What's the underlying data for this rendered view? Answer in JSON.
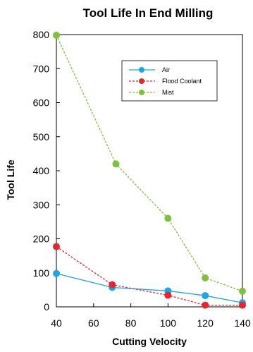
{
  "chart_data": {
    "type": "line",
    "title": "Tool Life In End Milling",
    "xlabel": "Cutting Velocity",
    "ylabel": "Tool Life",
    "xlim": [
      40,
      140
    ],
    "ylim": [
      0,
      800
    ],
    "xticks": [
      40,
      60,
      80,
      100,
      120,
      140
    ],
    "yticks": [
      0,
      100,
      200,
      300,
      400,
      500,
      600,
      700,
      800
    ],
    "grid": false,
    "legend": "top-right",
    "series": [
      {
        "name": "Air",
        "style": "solid",
        "color": "#1aa7e6",
        "x": [
          40,
          70,
          100,
          120,
          140
        ],
        "y": [
          98,
          57,
          47,
          33,
          12
        ]
      },
      {
        "name": "Flood Coolant",
        "style": "dotted",
        "color": "#e8242c",
        "x": [
          40,
          70,
          100,
          120,
          140
        ],
        "y": [
          177,
          65,
          34,
          5,
          5
        ]
      },
      {
        "name": "Mist",
        "style": "dotted",
        "color": "#7ec13a",
        "x": [
          40,
          72,
          100,
          120,
          140
        ],
        "y": [
          798,
          420,
          260,
          85,
          46
        ]
      }
    ]
  }
}
